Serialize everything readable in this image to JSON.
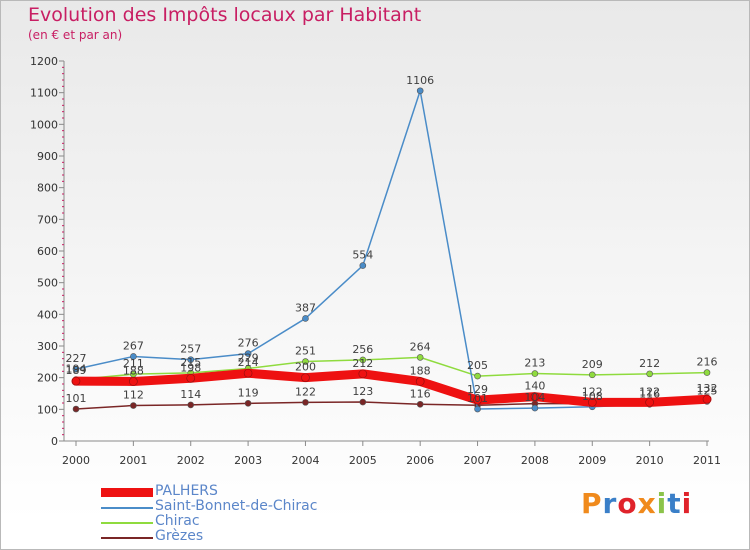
{
  "header": {
    "title": "Evolution des Impôts locaux par Habitant",
    "subtitle": "(en € et par an)"
  },
  "brand": {
    "name": "Proxiti",
    "colors": [
      "#f08a1c",
      "#3a7fc8",
      "#e0232b",
      "#f08a1c",
      "#8bc34a",
      "#3a7fc8",
      "#e0232b"
    ]
  },
  "chart_data": {
    "type": "line",
    "title": "Evolution des Impôts locaux par Habitant",
    "subtitle": "(en € et par an)",
    "xlabel": "",
    "ylabel": "",
    "ylim": [
      0,
      1200
    ],
    "yticks": [
      0,
      100,
      200,
      300,
      400,
      500,
      600,
      700,
      800,
      900,
      1000,
      1100,
      1200
    ],
    "categories": [
      "2000",
      "2001",
      "2002",
      "2003",
      "2004",
      "2005",
      "2006",
      "2007",
      "2008",
      "2009",
      "2010",
      "2011"
    ],
    "legend_position": "bottom-left",
    "grid": false,
    "series": [
      {
        "name": "Grèzes",
        "color": "#7a2626",
        "values": [
          101,
          112,
          114,
          119,
          122,
          123,
          116,
          113,
          118,
          118,
          123,
          128
        ],
        "labels": [
          "101",
          "112",
          "114",
          "119",
          "122",
          "123",
          "116",
          "",
          "",
          "",
          "",
          ""
        ]
      },
      {
        "name": "Chirac",
        "color": "#8fdb3e",
        "values": [
          194,
          211,
          215,
          229,
          251,
          256,
          264,
          205,
          213,
          209,
          212,
          216
        ],
        "labels": [
          "194",
          "211",
          "215",
          "229",
          "251",
          "256",
          "264",
          "205",
          "213",
          "209",
          "212",
          "216"
        ]
      },
      {
        "name": "Saint-Bonnet-de-Chirac",
        "color": "#4a8cc8",
        "values": [
          227,
          267,
          257,
          276,
          387,
          554,
          1106,
          101,
          104,
          108,
          116,
          125
        ],
        "labels": [
          "227",
          "267",
          "257",
          "276",
          "387",
          "554",
          "1106",
          "101",
          "104",
          "108",
          "116",
          "125"
        ]
      },
      {
        "name": "PALHERS",
        "color": "#ee1111",
        "values": [
          189,
          188,
          198,
          214,
          200,
          212,
          188,
          129,
          140,
          122,
          122,
          132
        ],
        "labels": [
          "189",
          "188",
          "198",
          "214",
          "200",
          "212",
          "188",
          "129",
          "140",
          "122",
          "122",
          "132"
        ]
      }
    ],
    "legend": [
      {
        "name": "PALHERS",
        "color": "#ee1111",
        "weight": 9
      },
      {
        "name": "Saint-Bonnet-de-Chirac",
        "color": "#4a8cc8",
        "weight": 2
      },
      {
        "name": "Chirac",
        "color": "#8fdb3e",
        "weight": 2
      },
      {
        "name": "Grèzes",
        "color": "#7a2626",
        "weight": 2
      }
    ]
  }
}
